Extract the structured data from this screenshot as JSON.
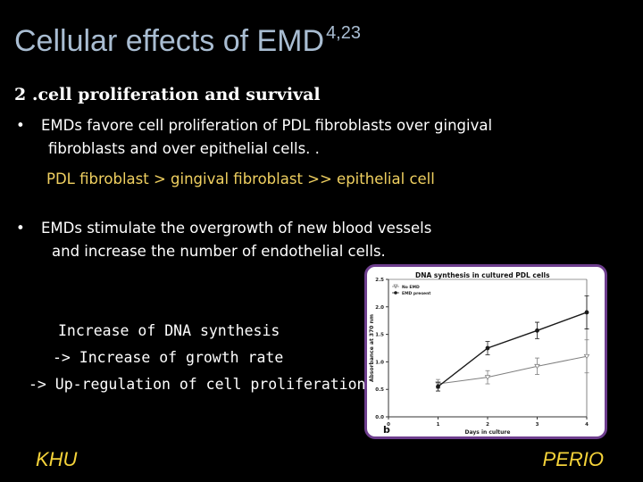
{
  "slide": {
    "title": "Cellular effects of EMD",
    "title_sup": "4,23",
    "subtitle": "2 .cell proliferation and survival",
    "bullet_symbol": "•",
    "bullet1_line1": "EMDs favore cell proliferation of PDL fibroblasts over gingival",
    "bullet1_line2": "fibroblasts and over epithelial cells. .",
    "ratio_line": "PDL fibroblast > gingival fibroblast >> epithelial cell",
    "bullet2_line1": "EMDs stimulate the overgrowth of new blood vessels",
    "bullet2_line2": "and increase the number of endothelial cells.",
    "step1": "Increase of  DNA synthesis",
    "step2": "-> Increase of growth rate",
    "step3": "-> Up-regulation of  cell proliferation",
    "footer_left": "KHU",
    "footer_right": "PERIO"
  },
  "colors": {
    "title": "#a9bdd2",
    "ratio": "#f0d060",
    "footer": "#f5d33a",
    "frame": "#6e3e8e",
    "series_no_emd": "#7f7f7f",
    "series_emd": "#1a1a1a"
  },
  "chart_data": {
    "type": "line",
    "title": "DNA synthesis in cultured PDL cells",
    "xlabel": "Days in culture",
    "ylabel": "Absorbance at 370 nm",
    "panel_label": "b",
    "x": [
      1,
      2,
      3,
      4
    ],
    "x_ticks": [
      "0",
      "1",
      "2",
      "3",
      "4"
    ],
    "y_ticks": [
      "0.0",
      "0.5",
      "1.0",
      "1.5",
      "2.0",
      "2.5"
    ],
    "xlim": [
      0,
      4
    ],
    "ylim": [
      0,
      2.5
    ],
    "legend_position": "top-left",
    "series": [
      {
        "name": "No EMD",
        "marker": "triangle-open",
        "values": [
          0.6,
          0.72,
          0.92,
          1.1
        ],
        "errors": [
          0.08,
          0.12,
          0.15,
          0.3
        ]
      },
      {
        "name": "EMD present",
        "marker": "circle-filled",
        "values": [
          0.55,
          1.25,
          1.57,
          1.9
        ],
        "errors": [
          0.08,
          0.12,
          0.15,
          0.3
        ]
      }
    ]
  }
}
